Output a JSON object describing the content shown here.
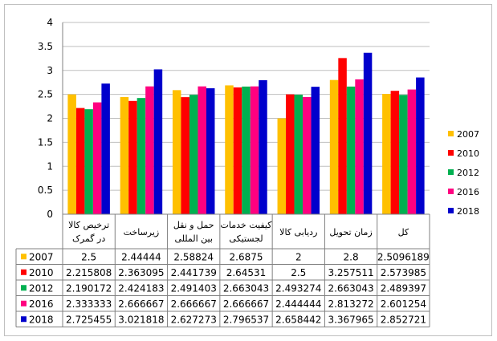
{
  "chart_data": {
    "type": "bar",
    "title": "",
    "xlabel": "",
    "ylabel": "",
    "ylim": [
      0,
      4
    ],
    "yticks": [
      "0",
      "0.5",
      "1",
      "1.5",
      "2",
      "2.5",
      "3",
      "3.5",
      "4"
    ],
    "grid": true,
    "legend_position": "right",
    "categories": [
      "ترخیص کالا در گمرک",
      "زیرساخت",
      "حمل و نقل بین المللی",
      "کیفیت خدمات لجستیکی",
      "ردیابی کالا",
      "زمان تحویل",
      "کل"
    ],
    "series": [
      {
        "name": "2007",
        "color": "#ffc000",
        "values": [
          2.5,
          2.44444,
          2.58824,
          2.6875,
          2,
          2.8,
          2.5096189
        ],
        "labels": [
          "2.5",
          "2.44444",
          "2.58824",
          "2.6875",
          "2",
          "2.8",
          "2.5096189"
        ]
      },
      {
        "name": "2010",
        "color": "#ff0000",
        "values": [
          2.215808,
          2.363095,
          2.441739,
          2.64531,
          2.5,
          3.257511,
          2.573985
        ],
        "labels": [
          "2.215808",
          "2.363095",
          "2.441739",
          "2.64531",
          "2.5",
          "3.257511",
          "2.573985"
        ]
      },
      {
        "name": "2012",
        "color": "#00b050",
        "values": [
          2.190172,
          2.424183,
          2.491403,
          2.663043,
          2.493274,
          2.663043,
          2.489397
        ],
        "labels": [
          "2.190172",
          "2.424183",
          "2.491403",
          "2.663043",
          "2.493274",
          "2.663043",
          "2.489397"
        ]
      },
      {
        "name": "2016",
        "color": "#ff0080",
        "values": [
          2.333333,
          2.666667,
          2.666667,
          2.666667,
          2.444444,
          2.813272,
          2.601254
        ],
        "labels": [
          "2.333333",
          "2.666667",
          "2.666667",
          "2.666667",
          "2.444444",
          "2.813272",
          "2.601254"
        ]
      },
      {
        "name": "2018",
        "color": "#0000cc",
        "values": [
          2.725455,
          3.021818,
          2.627273,
          2.796537,
          2.658442,
          3.367965,
          2.852721
        ],
        "labels": [
          "2.725455",
          "3.021818",
          "2.627273",
          "2.796537",
          "2.658442",
          "3.367965",
          "2.852721"
        ]
      }
    ]
  }
}
